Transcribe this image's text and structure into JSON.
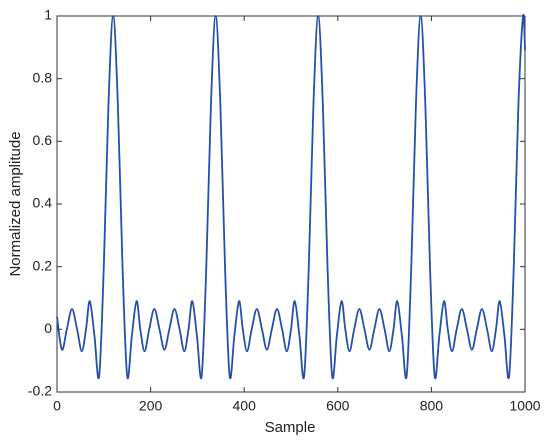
{
  "chart_data": {
    "type": "line",
    "xlabel": "Sample",
    "ylabel": "Normalized amplitude",
    "color": "#2350a8",
    "x": [
      0,
      10.5,
      21,
      32,
      43,
      53,
      62,
      70,
      80,
      90,
      100,
      110,
      120,
      130,
      140,
      150,
      160,
      170,
      178,
      187,
      197,
      208,
      219,
      229.5,
      240,
      251,
      262,
      272,
      281,
      289,
      299,
      309,
      319,
      329,
      339,
      349,
      359,
      369,
      379,
      389,
      397,
      406,
      416,
      427,
      438,
      448.5,
      459,
      470,
      481,
      491,
      500,
      508,
      518,
      528,
      538,
      548,
      558,
      568,
      578,
      588,
      598,
      608,
      616,
      625,
      635,
      646,
      657,
      667.5,
      678,
      689,
      700,
      710,
      719,
      727,
      737,
      747,
      757,
      767,
      777,
      787,
      797,
      807,
      817,
      827,
      835,
      844,
      854,
      865,
      876,
      886.5,
      897,
      908,
      919,
      929,
      938,
      946,
      956,
      966,
      976,
      986,
      996,
      1000
    ],
    "values": [
      0.04,
      -0.065,
      0,
      0.065,
      0,
      -0.07,
      0,
      0.09,
      -0.02,
      -0.15,
      0.2,
      0.72,
      1,
      0.72,
      0.2,
      -0.15,
      -0.02,
      0.09,
      0,
      -0.07,
      0,
      0.065,
      0,
      -0.065,
      0,
      0.065,
      0,
      -0.07,
      0,
      0.09,
      -0.02,
      -0.15,
      0.2,
      0.72,
      1,
      0.72,
      0.2,
      -0.15,
      -0.02,
      0.09,
      0,
      -0.07,
      0,
      0.065,
      0,
      -0.065,
      0,
      0.065,
      0,
      -0.07,
      0,
      0.09,
      -0.02,
      -0.15,
      0.2,
      0.72,
      1,
      0.72,
      0.2,
      -0.15,
      -0.02,
      0.09,
      0,
      -0.07,
      0,
      0.065,
      0,
      -0.065,
      0,
      0.065,
      0,
      -0.07,
      0,
      0.09,
      -0.02,
      -0.15,
      0.2,
      0.72,
      1,
      0.72,
      0.2,
      -0.15,
      -0.02,
      0.09,
      0,
      -0.07,
      0,
      0.065,
      0,
      -0.065,
      0,
      0.065,
      0,
      -0.07,
      0,
      0.09,
      -0.02,
      -0.15,
      0.2,
      0.72,
      1,
      0.89
    ],
    "xlim": [
      0,
      1000
    ],
    "xticks": [
      0,
      200,
      400,
      600,
      800,
      1000
    ],
    "ylim": [
      -0.2,
      1
    ],
    "yticks": [
      -0.2,
      0,
      0.2,
      0.4,
      0.6,
      0.8,
      1
    ],
    "grid": false
  }
}
